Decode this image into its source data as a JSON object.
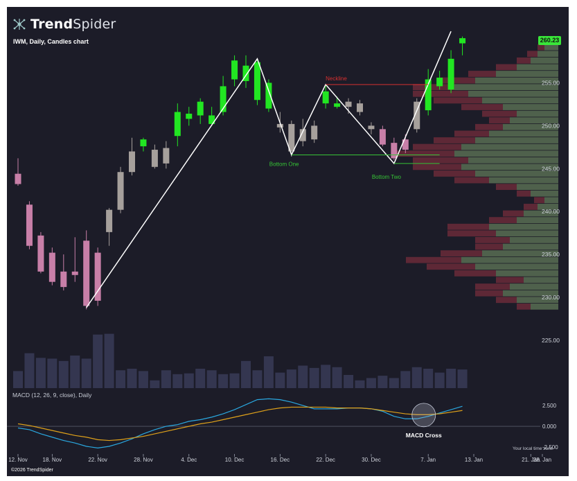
{
  "brand": {
    "name_bold": "Trend",
    "name_light": "Spider",
    "copyright": "©2026 TrendSpider"
  },
  "chart_title": "IWM, Daily, Candles chart",
  "price_badge": "260.23",
  "macd_title": "MACD (12, 26, 9, close), Daily",
  "timezone_note": "Your local time zone",
  "colors": {
    "background": "#1c1c28",
    "up": "#22e622",
    "down_pink": "#c87fa8",
    "neutral": "#a6a09c",
    "macd_line": "#2aa8e0",
    "signal_line": "#e0a21a",
    "pattern_line": "#ffffff",
    "neckline": "#d93030",
    "bottom_line": "#36c436",
    "volume": "#343650",
    "vp_up": "#7a9a6a",
    "vp_down": "#8a3040"
  },
  "chart_data": [
    {
      "type": "candlestick",
      "symbol": "IWM",
      "interval": "Daily",
      "ylim": [
        222,
        261.5
      ],
      "y_ticks": [
        225.0,
        230.0,
        235.0,
        240.0,
        245.0,
        250.0,
        255.0
      ],
      "x_ticks": [
        {
          "label": "12. Nov",
          "i": 0
        },
        {
          "label": "18. Nov",
          "i": 3
        },
        {
          "label": "22. Nov",
          "i": 7
        },
        {
          "label": "28. Nov",
          "i": 11
        },
        {
          "label": "4. Dec",
          "i": 15
        },
        {
          "label": "10. Dec",
          "i": 19
        },
        {
          "label": "16. Dec",
          "i": 23
        },
        {
          "label": "22. Dec",
          "i": 27
        },
        {
          "label": "30. Dec",
          "i": 31
        },
        {
          "label": "7. Jan",
          "i": 36
        },
        {
          "label": "13. Jan",
          "i": 40
        },
        {
          "label": "21. Jan",
          "i": 45
        },
        {
          "label": "28. Jan",
          "i": 46
        }
      ],
      "candles": [
        {
          "o": 244.4,
          "h": 246.2,
          "l": 243.0,
          "c": 243.2,
          "k": "p"
        },
        {
          "o": 240.8,
          "h": 241.2,
          "l": 235.6,
          "c": 236.0,
          "k": "p"
        },
        {
          "o": 237.2,
          "h": 237.6,
          "l": 232.8,
          "c": 233.0,
          "k": "p"
        },
        {
          "o": 235.2,
          "h": 235.8,
          "l": 231.4,
          "c": 231.8,
          "k": "p"
        },
        {
          "o": 233.0,
          "h": 235.0,
          "l": 230.8,
          "c": 231.2,
          "k": "p"
        },
        {
          "o": 233.0,
          "h": 237.0,
          "l": 231.8,
          "c": 232.6,
          "k": "p"
        },
        {
          "o": 236.6,
          "h": 237.8,
          "l": 228.6,
          "c": 229.0,
          "k": "p"
        },
        {
          "o": 235.2,
          "h": 235.8,
          "l": 229.0,
          "c": 229.6,
          "k": "p"
        },
        {
          "o": 237.6,
          "h": 240.4,
          "l": 236.0,
          "c": 240.2,
          "k": "n"
        },
        {
          "o": 240.2,
          "h": 245.2,
          "l": 239.8,
          "c": 244.6,
          "k": "n"
        },
        {
          "o": 244.6,
          "h": 248.6,
          "l": 244.2,
          "c": 247.0,
          "k": "n"
        },
        {
          "o": 247.6,
          "h": 248.6,
          "l": 247.0,
          "c": 248.4,
          "k": "u"
        },
        {
          "o": 245.2,
          "h": 247.8,
          "l": 245.0,
          "c": 247.2,
          "k": "n"
        },
        {
          "o": 245.6,
          "h": 248.2,
          "l": 245.0,
          "c": 247.4,
          "k": "n"
        },
        {
          "o": 248.8,
          "h": 252.6,
          "l": 247.6,
          "c": 251.6,
          "k": "u"
        },
        {
          "o": 250.8,
          "h": 252.2,
          "l": 250.0,
          "c": 251.4,
          "k": "u"
        },
        {
          "o": 251.2,
          "h": 253.2,
          "l": 250.2,
          "c": 252.8,
          "k": "u"
        },
        {
          "o": 251.2,
          "h": 252.2,
          "l": 250.0,
          "c": 250.2,
          "k": "u"
        },
        {
          "o": 251.6,
          "h": 255.8,
          "l": 251.2,
          "c": 254.6,
          "k": "u"
        },
        {
          "o": 255.4,
          "h": 258.2,
          "l": 254.6,
          "c": 257.6,
          "k": "u"
        },
        {
          "o": 255.2,
          "h": 258.2,
          "l": 254.4,
          "c": 257.0,
          "k": "u"
        },
        {
          "o": 253.0,
          "h": 257.8,
          "l": 252.4,
          "c": 257.4,
          "k": "u"
        },
        {
          "o": 255.0,
          "h": 255.4,
          "l": 251.6,
          "c": 252.0,
          "k": "u"
        },
        {
          "o": 250.2,
          "h": 251.6,
          "l": 249.2,
          "c": 249.8,
          "k": "n"
        },
        {
          "o": 250.2,
          "h": 250.6,
          "l": 246.4,
          "c": 247.0,
          "k": "n"
        },
        {
          "o": 249.6,
          "h": 250.8,
          "l": 247.6,
          "c": 248.2,
          "k": "n"
        },
        {
          "o": 248.4,
          "h": 250.6,
          "l": 248.0,
          "c": 250.0,
          "k": "n"
        },
        {
          "o": 254.0,
          "h": 254.8,
          "l": 252.0,
          "c": 252.6,
          "k": "u"
        },
        {
          "o": 252.6,
          "h": 253.4,
          "l": 252.0,
          "c": 252.2,
          "k": "u"
        },
        {
          "o": 252.8,
          "h": 253.2,
          "l": 251.4,
          "c": 252.2,
          "k": "n"
        },
        {
          "o": 252.6,
          "h": 253.0,
          "l": 251.2,
          "c": 251.6,
          "k": "n"
        },
        {
          "o": 249.6,
          "h": 250.4,
          "l": 249.0,
          "c": 250.0,
          "k": "n"
        },
        {
          "o": 249.6,
          "h": 250.0,
          "l": 247.6,
          "c": 247.8,
          "k": "p"
        },
        {
          "o": 248.0,
          "h": 248.6,
          "l": 246.0,
          "c": 246.2,
          "k": "p"
        },
        {
          "o": 248.4,
          "h": 249.0,
          "l": 246.8,
          "c": 247.2,
          "k": "p"
        },
        {
          "o": 249.6,
          "h": 253.2,
          "l": 249.2,
          "c": 252.8,
          "k": "n"
        },
        {
          "o": 251.8,
          "h": 256.6,
          "l": 251.2,
          "c": 255.4,
          "k": "u"
        },
        {
          "o": 254.6,
          "h": 256.4,
          "l": 254.2,
          "c": 255.6,
          "k": "u"
        },
        {
          "o": 254.2,
          "h": 258.8,
          "l": 253.8,
          "c": 257.8,
          "k": "u"
        },
        {
          "o": 259.6,
          "h": 260.4,
          "l": 258.2,
          "c": 260.2,
          "k": "u"
        }
      ],
      "volume": [
        22,
        45,
        39,
        38,
        35,
        42,
        38,
        69,
        70,
        23,
        25,
        22,
        10,
        23,
        18,
        19,
        25,
        23,
        18,
        19,
        35,
        23,
        41,
        20,
        24,
        29,
        26,
        30,
        27,
        17,
        10,
        13,
        16,
        13,
        22,
        27,
        25,
        20,
        25,
        24
      ],
      "annotations": {
        "pattern_points": [
          {
            "i": 6,
            "p": 228.8
          },
          {
            "i": 21,
            "p": 257.8
          },
          {
            "i": 24,
            "p": 246.6
          },
          {
            "i": 27,
            "p": 254.8
          },
          {
            "i": 33,
            "p": 245.6
          },
          {
            "i": 38,
            "p": 261.0
          }
        ],
        "neckline": {
          "label": "Neckline",
          "price": 254.8,
          "i_from": 27,
          "i_to": 36
        },
        "bottom_one": {
          "label": "Bottom One",
          "price": 246.6,
          "i_from": 24,
          "i_to": 37
        },
        "bottom_two": {
          "label": "Bottom Two",
          "price": 245.6,
          "i_from": 33,
          "i_to": 37
        }
      },
      "volume_profile": {
        "price_min": 228.5,
        "price_max": 259.5,
        "up": [
          40,
          60,
          80,
          70,
          50,
          90,
          120,
          140,
          110,
          80,
          70,
          90,
          100,
          60,
          50,
          30,
          20,
          40,
          60,
          100,
          120,
          140,
          130,
          150,
          140,
          120,
          100,
          80,
          70,
          60,
          80,
          110,
          130,
          150,
          120,
          90,
          60,
          40,
          30,
          20
        ],
        "down": [
          20,
          30,
          40,
          50,
          40,
          60,
          70,
          80,
          60,
          40,
          50,
          70,
          60,
          40,
          30,
          20,
          15,
          20,
          30,
          50,
          60,
          70,
          80,
          90,
          70,
          60,
          50,
          40,
          30,
          50,
          60,
          70,
          80,
          60,
          50,
          40,
          30,
          20,
          15,
          10
        ]
      }
    },
    {
      "type": "line",
      "title": "MACD (12, 26, 9, close), Daily",
      "ylim": [
        -2.9,
        3.5
      ],
      "y_ticks": [
        -2.5,
        0.0,
        2.5
      ],
      "annotation": {
        "label": "MACD Cross",
        "i": 35
      },
      "series": [
        {
          "name": "MACD",
          "values": [
            -0.2,
            -0.4,
            -0.9,
            -1.3,
            -1.7,
            -2.0,
            -2.4,
            -2.6,
            -2.4,
            -2.0,
            -1.5,
            -0.9,
            -0.4,
            0.0,
            0.2,
            0.6,
            0.8,
            1.1,
            1.5,
            2.0,
            2.6,
            3.2,
            3.3,
            3.2,
            2.9,
            2.5,
            2.1,
            2.1,
            2.1,
            2.2,
            2.2,
            2.1,
            1.8,
            1.2,
            0.9,
            0.9,
            1.2,
            1.6,
            2.0,
            2.4
          ]
        },
        {
          "name": "Signal",
          "values": [
            0.3,
            0.1,
            -0.2,
            -0.5,
            -0.8,
            -1.1,
            -1.3,
            -1.6,
            -1.7,
            -1.6,
            -1.4,
            -1.2,
            -0.9,
            -0.6,
            -0.3,
            0.0,
            0.3,
            0.5,
            0.8,
            1.1,
            1.4,
            1.7,
            2.0,
            2.2,
            2.3,
            2.3,
            2.3,
            2.3,
            2.2,
            2.2,
            2.2,
            2.1,
            1.9,
            1.7,
            1.5,
            1.4,
            1.4,
            1.5,
            1.7,
            1.9
          ]
        }
      ]
    }
  ]
}
